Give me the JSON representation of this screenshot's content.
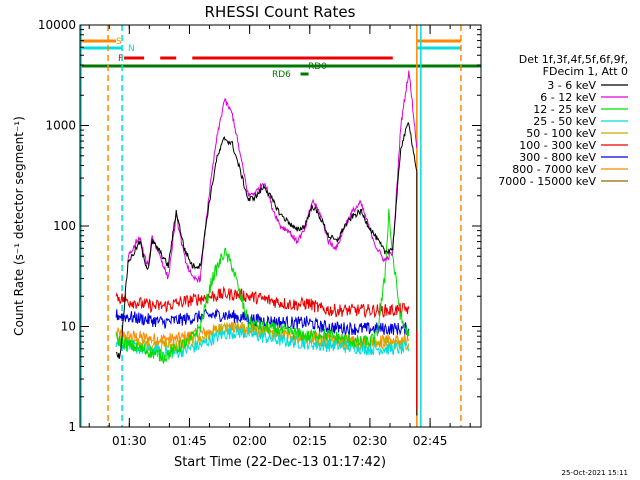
{
  "chart_data": {
    "type": "line",
    "title": "RHESSI Count Rates",
    "xlabel": "Start Time (22-Dec-13 01:17:42)",
    "ylabel": "Count Rate (s⁻¹ detector segment⁻¹)",
    "x_unit": "minutes after 01:17:42",
    "xlim": [
      0,
      100
    ],
    "ylim": [
      1,
      10000
    ],
    "y_scale": "log",
    "x_ticks": [
      {
        "x": 12.3,
        "label": "01:30"
      },
      {
        "x": 27.3,
        "label": "01:45"
      },
      {
        "x": 42.3,
        "label": "02:00"
      },
      {
        "x": 57.3,
        "label": "02:15"
      },
      {
        "x": 72.3,
        "label": "02:30"
      },
      {
        "x": 87.3,
        "label": "02:45"
      }
    ],
    "y_ticks": [
      {
        "y": 1,
        "label": "1"
      },
      {
        "y": 10,
        "label": "10"
      },
      {
        "y": 100,
        "label": "100"
      },
      {
        "y": 1000,
        "label": "1000"
      },
      {
        "y": 10000,
        "label": "10000"
      }
    ],
    "grid": false,
    "legend_header": [
      "Det 1f,3f,4f,5f,6f,9f,",
      "FDecim 1, Att 0"
    ],
    "legend_placement": "right",
    "footer": "25-Oct-2021 15:11",
    "series": [
      {
        "name": "3 - 6 keV",
        "color": "#000000",
        "x": [
          9,
          10,
          12,
          13,
          14,
          15,
          16,
          17,
          18,
          20,
          22,
          24,
          26,
          28,
          30,
          32,
          34,
          36,
          38,
          40,
          42,
          44,
          46,
          48,
          50,
          52,
          54,
          56,
          58,
          60,
          62,
          64,
          66,
          68,
          70,
          72,
          74,
          76,
          78,
          80,
          82,
          83,
          84
        ],
        "y": [
          5.5,
          5,
          45,
          50,
          60,
          70,
          45,
          38,
          70,
          55,
          40,
          140,
          60,
          40,
          40,
          150,
          450,
          750,
          650,
          350,
          180,
          200,
          250,
          180,
          130,
          110,
          90,
          100,
          160,
          120,
          80,
          70,
          100,
          125,
          140,
          100,
          75,
          55,
          60,
          600,
          1100,
          600,
          350
        ]
      },
      {
        "name": "6 - 12 keV",
        "color": "#dd00dd",
        "x": [
          12,
          13,
          14,
          15,
          16,
          17,
          18,
          20,
          22,
          24,
          26,
          28,
          30,
          32,
          34,
          36,
          38,
          40,
          42,
          44,
          46,
          48,
          50,
          52,
          54,
          56,
          58,
          60,
          62,
          64,
          66,
          68,
          70,
          72,
          74,
          76,
          78,
          80,
          82,
          83,
          84
        ],
        "y": [
          50,
          55,
          70,
          75,
          50,
          40,
          80,
          50,
          30,
          130,
          50,
          30,
          30,
          180,
          700,
          1800,
          1300,
          500,
          200,
          220,
          280,
          150,
          100,
          90,
          70,
          90,
          180,
          130,
          70,
          60,
          100,
          140,
          170,
          100,
          60,
          45,
          55,
          1000,
          3500,
          1500,
          600
        ]
      },
      {
        "name": "12 - 25 keV",
        "color": "#00dd00",
        "x": [
          9,
          12,
          15,
          18,
          21,
          24,
          27,
          30,
          33,
          36,
          38,
          40,
          42,
          45,
          48,
          51,
          54,
          57,
          60,
          63,
          66,
          69,
          72,
          74,
          76,
          77,
          78,
          80,
          82
        ],
        "y": [
          7.5,
          6.5,
          6,
          5.5,
          5,
          6,
          7,
          10,
          30,
          55,
          40,
          20,
          11,
          10,
          9.5,
          9,
          8.5,
          8,
          8.5,
          8,
          7.5,
          7,
          7,
          8,
          30,
          140,
          50,
          12,
          8
        ]
      },
      {
        "name": "25 - 50 keV",
        "color": "#00dddd",
        "x": [
          9,
          12,
          15,
          18,
          21,
          24,
          27,
          30,
          33,
          36,
          39,
          42,
          45,
          48,
          51,
          54,
          57,
          60,
          63,
          66,
          69,
          72,
          75,
          78,
          82
        ],
        "y": [
          7,
          6.5,
          6,
          5.8,
          5.5,
          5.5,
          6,
          6.5,
          7.5,
          8.5,
          8.8,
          8.5,
          8,
          7.5,
          7.2,
          7,
          6.8,
          6.5,
          6.5,
          6.3,
          6.2,
          6,
          6,
          6,
          6
        ]
      },
      {
        "name": "50 - 100 keV",
        "color": "#ccaa00",
        "x": [
          9,
          12,
          15,
          18,
          21,
          24,
          27,
          30,
          33,
          36,
          39,
          42,
          45,
          48,
          51,
          54,
          57,
          60,
          63,
          66,
          69,
          72,
          75,
          78,
          82
        ],
        "y": [
          7.5,
          7,
          6.8,
          6.5,
          6.5,
          6.5,
          7,
          7.5,
          8.5,
          9.5,
          9.8,
          9.5,
          9,
          8.5,
          8.2,
          8,
          7.5,
          7.3,
          7.2,
          7,
          6.8,
          6.8,
          6.8,
          6.8,
          6.8
        ]
      },
      {
        "name": "100 - 300 keV",
        "color": "#ee0000",
        "x": [
          9,
          12,
          15,
          18,
          21,
          24,
          27,
          30,
          33,
          36,
          39,
          42,
          45,
          48,
          51,
          54,
          57,
          60,
          63,
          66,
          69,
          72,
          75,
          78,
          82
        ],
        "y": [
          20,
          18,
          17,
          16,
          16,
          17,
          18,
          19,
          20,
          21,
          21,
          20,
          19,
          18,
          17,
          16.5,
          17,
          15,
          14.5,
          14.5,
          14.5,
          14.5,
          14.5,
          14.5,
          15
        ]
      },
      {
        "name": "300 - 800 keV",
        "color": "#0000dd",
        "x": [
          9,
          12,
          15,
          18,
          21,
          24,
          27,
          30,
          33,
          36,
          39,
          42,
          45,
          48,
          51,
          54,
          57,
          60,
          63,
          66,
          69,
          72,
          75,
          78,
          82
        ],
        "y": [
          13,
          12.5,
          12,
          11.5,
          11,
          11.5,
          12,
          12.5,
          13,
          13,
          12.5,
          12,
          11.5,
          11.2,
          11,
          10.8,
          11,
          10,
          9.8,
          9.6,
          9.5,
          9.5,
          9.5,
          9.5,
          9.5
        ]
      },
      {
        "name": "800 - 7000 keV",
        "color": "#ff8800",
        "x": [
          9,
          12,
          15,
          18,
          21,
          24,
          27,
          30,
          33,
          36,
          39,
          42,
          45,
          48,
          51,
          54,
          57,
          60,
          63,
          66,
          69,
          72,
          75,
          78,
          82
        ],
        "y": [
          8.5,
          8,
          7.8,
          7.5,
          7.5,
          7.5,
          8,
          8.5,
          9,
          9.5,
          9.5,
          9.2,
          9,
          8.5,
          8.2,
          8,
          7.8,
          7.5,
          7.4,
          7.2,
          7.2,
          7.2,
          7.2,
          7.2,
          7.2
        ]
      },
      {
        "name": "7000 - 15000 keV",
        "color": "#996600",
        "x": [],
        "y": []
      }
    ],
    "attenuator_flags": [
      {
        "label": "S",
        "color": "#ff8800",
        "segments": [
          [
            0,
            9
          ],
          [
            84,
            95
          ]
        ]
      },
      {
        "label": "N",
        "color": "#00dddd",
        "segments": [
          [
            0,
            10.5
          ],
          [
            84,
            95
          ]
        ]
      },
      {
        "label": "F",
        "color": "#ee0000",
        "segments": [
          [
            11,
            16
          ],
          [
            20,
            24
          ],
          [
            28,
            78
          ]
        ]
      },
      {
        "label": "RD0",
        "color": "#007700",
        "segments": [
          [
            0,
            100
          ]
        ]
      },
      {
        "label": "RD6",
        "color": "#007700",
        "segments": [
          [
            55,
            57
          ]
        ]
      }
    ],
    "vertical_lines": [
      {
        "x": 0,
        "color": "#00dddd",
        "style": "solid"
      },
      {
        "x": 7,
        "color": "#ff8800",
        "style": "dashed"
      },
      {
        "x": 10.5,
        "color": "#00dddd",
        "style": "dashed"
      },
      {
        "x": 84,
        "color": "#ff8800",
        "style": "solid"
      },
      {
        "x": 85,
        "color": "#00dddd",
        "style": "solid"
      },
      {
        "x": 95,
        "color": "#ff8800",
        "style": "dashed"
      }
    ]
  }
}
